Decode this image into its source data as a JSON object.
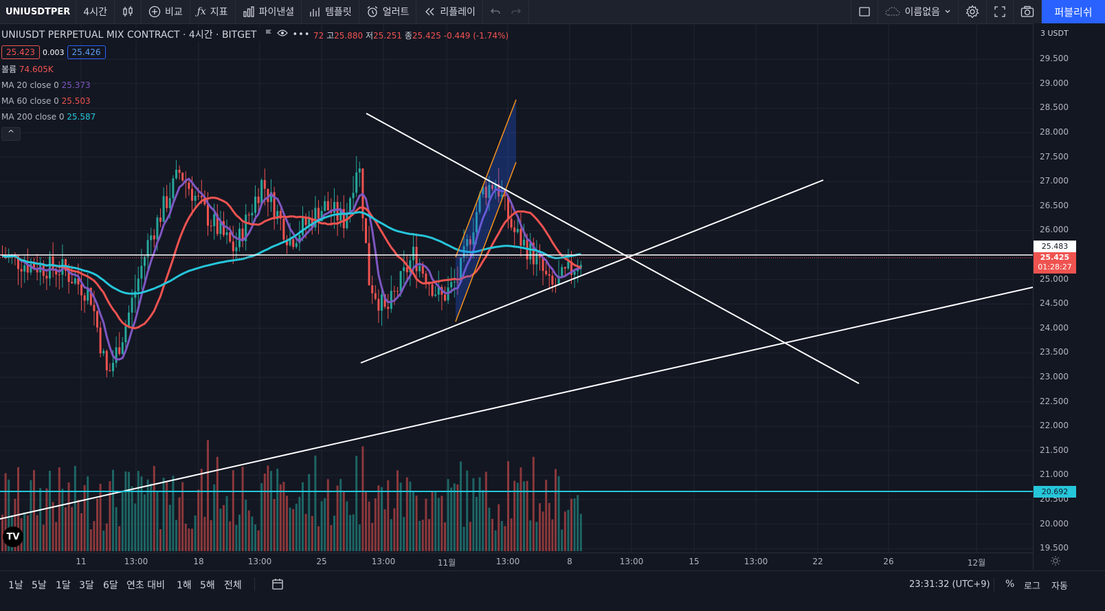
{
  "toolbar": {
    "symbol": "UNIUSDTPER",
    "interval": "4시간",
    "compare": "비교",
    "indicators": "지표",
    "financials": "파이낸셜",
    "templates": "템플릿",
    "alert": "얼러트",
    "replay": "리플레이",
    "layout_name": "이름없음",
    "publish": "퍼블리쉬"
  },
  "legend": {
    "title": "UNIUSDT PERPETUAL MIX CONTRACT · 4시간 · BITGET",
    "ohlc_prefix": "72",
    "high_label": "고",
    "high": "25.880",
    "low_label": "저",
    "low": "25.251",
    "close_label": "종",
    "close": "25.425",
    "change": "-0.449 (-1.74%)",
    "bid": "25.423",
    "spread": "0.003",
    "ask": "25.426",
    "collapse": "^"
  },
  "indicators": [
    {
      "name": "볼륨",
      "value": "74.605K",
      "color": "#ef5350"
    },
    {
      "name": "MA 20 close 0",
      "value": "25.373",
      "color": "#7e57c2"
    },
    {
      "name": "MA 60 close 0",
      "value": "25.503",
      "color": "#ef5350"
    },
    {
      "name": "MA 200 close 0",
      "value": "25.587",
      "color": "#26c6da"
    }
  ],
  "price_scale": {
    "currency_top": "3",
    "currency": "USDT",
    "ticks": [
      "29.500",
      "29.000",
      "28.500",
      "28.000",
      "27.500",
      "27.000",
      "26.500",
      "26.000",
      "25.000",
      "24.500",
      "24.000",
      "23.500",
      "23.000",
      "22.500",
      "22.000",
      "21.500",
      "21.000",
      "20.500",
      "20.000",
      "19.500"
    ],
    "label_white": "25.483",
    "label_price": "25.425",
    "label_countdown": "01:28:27",
    "label_cyan": "20.692"
  },
  "time_axis": [
    "11",
    "13:00",
    "18",
    "13:00",
    "25",
    "13:00",
    "11월",
    "13:00",
    "8",
    "13:00",
    "15",
    "13:00",
    "22",
    "26",
    "12월"
  ],
  "bottom": {
    "ranges": [
      "1날",
      "5날",
      "1달",
      "3달",
      "6달",
      "연초 대비",
      "1해",
      "5해",
      "전체"
    ],
    "clock": "23:31:32 (UTC+9)",
    "percent": "%",
    "log": "로그",
    "auto": "자동"
  },
  "colors": {
    "background": "#131722",
    "up": "#26a69a",
    "down": "#ef5350",
    "ma20": "#7e57c2",
    "ma60": "#ef5350",
    "ma200": "#26c6da",
    "accent": "#2962ff",
    "pattern": "#f7931a"
  },
  "logo_text": "TV"
}
